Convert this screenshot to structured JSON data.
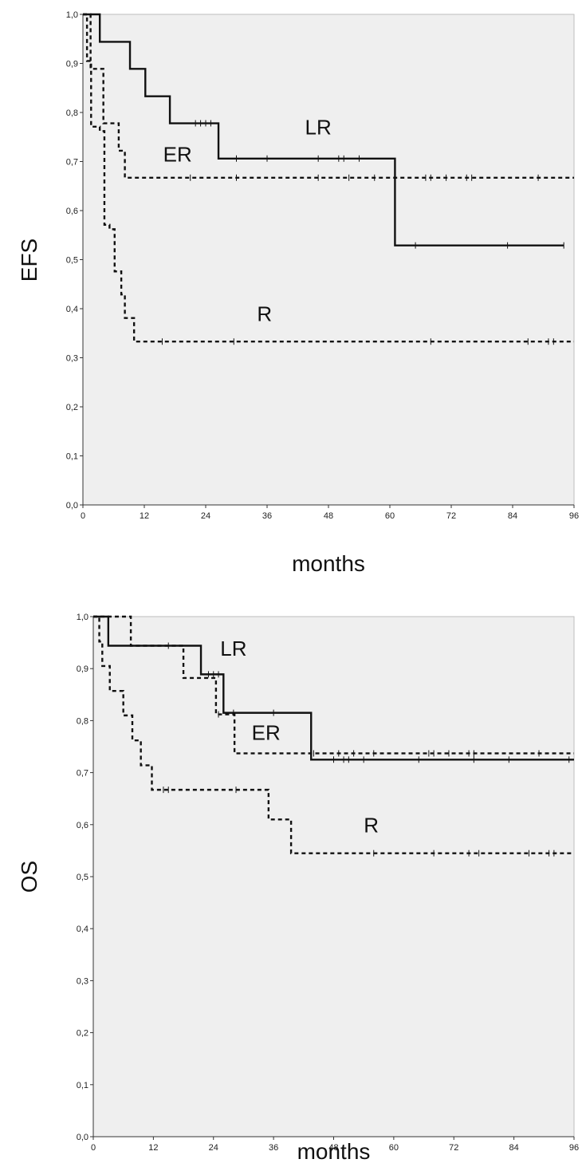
{
  "chart_data": [
    {
      "type": "line",
      "subtype": "kaplan-meier",
      "ylabel": "EFS",
      "xlabel": "months",
      "xlim": [
        0,
        96
      ],
      "ylim": [
        0.0,
        1.0
      ],
      "xticks": [
        "0",
        "12",
        "24",
        "36",
        "48",
        "60",
        "72",
        "84",
        "96"
      ],
      "yticks": [
        "0,0",
        "0,1",
        "0,2",
        "0,3",
        "0,4",
        "0,5",
        "0,6",
        "0,7",
        "0,8",
        "0,9",
        "1,0"
      ],
      "grid": false,
      "background": "#efefef",
      "series": [
        {
          "name": "LR",
          "style": "solid",
          "steps": [
            [
              0,
              1.0
            ],
            [
              3.3,
              0.944
            ],
            [
              9.2,
              0.889
            ],
            [
              12.2,
              0.833
            ],
            [
              17,
              0.778
            ],
            [
              26.5,
              0.706
            ],
            [
              61,
              0.529
            ],
            [
              94,
              0.529
            ]
          ],
          "censored": [
            [
              22,
              0.778
            ],
            [
              23,
              0.778
            ],
            [
              24,
              0.778
            ],
            [
              25,
              0.778
            ],
            [
              30,
              0.706
            ],
            [
              36,
              0.706
            ],
            [
              46,
              0.706
            ],
            [
              50,
              0.706
            ],
            [
              51,
              0.706
            ],
            [
              54,
              0.706
            ],
            [
              65,
              0.529
            ],
            [
              83,
              0.529
            ],
            [
              94,
              0.529
            ]
          ],
          "label_at": [
            46,
            0.755
          ]
        },
        {
          "name": "ER",
          "style": "dashed",
          "steps": [
            [
              0,
              1.0
            ],
            [
              1.5,
              0.889
            ],
            [
              4,
              0.778
            ],
            [
              7,
              0.722
            ],
            [
              8.2,
              0.667
            ],
            [
              96,
              0.667
            ]
          ],
          "censored": [
            [
              21,
              0.667
            ],
            [
              30,
              0.667
            ],
            [
              46,
              0.667
            ],
            [
              52,
              0.667
            ],
            [
              57,
              0.667
            ],
            [
              67,
              0.667
            ],
            [
              68,
              0.667
            ],
            [
              71,
              0.667
            ],
            [
              75,
              0.667
            ],
            [
              76,
              0.667
            ],
            [
              89,
              0.667
            ]
          ],
          "label_at": [
            18.5,
            0.7
          ]
        },
        {
          "name": "R",
          "style": "dashed",
          "steps": [
            [
              0,
              1.0
            ],
            [
              0.8,
              0.905
            ],
            [
              1.6,
              0.771
            ],
            [
              3.3,
              0.762
            ],
            [
              4.2,
              0.571
            ],
            [
              5.2,
              0.562
            ],
            [
              6.2,
              0.476
            ],
            [
              7.5,
              0.429
            ],
            [
              8.2,
              0.381
            ],
            [
              9,
              0.381
            ],
            [
              10,
              0.333
            ],
            [
              96,
              0.333
            ]
          ],
          "censored": [
            [
              15.5,
              0.333
            ],
            [
              29.5,
              0.333
            ],
            [
              68,
              0.333
            ],
            [
              87,
              0.333
            ],
            [
              91,
              0.333
            ],
            [
              92,
              0.333
            ]
          ],
          "label_at": [
            35.5,
            0.375
          ]
        }
      ]
    },
    {
      "type": "line",
      "subtype": "kaplan-meier",
      "ylabel": "OS",
      "xlabel": "months",
      "xlim": [
        0,
        96
      ],
      "ylim": [
        0.0,
        1.0
      ],
      "xticks": [
        "0",
        "12",
        "24",
        "36",
        "48",
        "60",
        "72",
        "84",
        "96"
      ],
      "yticks": [
        "0,0",
        "0,1",
        "0,2",
        "0,3",
        "0,4",
        "0,5",
        "0,6",
        "0,7",
        "0,8",
        "0,9",
        "1,0"
      ],
      "grid": false,
      "background": "#efefef",
      "series": [
        {
          "name": "LR",
          "style": "solid",
          "steps": [
            [
              0,
              1.0
            ],
            [
              3,
              0.944
            ],
            [
              21.5,
              0.889
            ],
            [
              26,
              0.815
            ],
            [
              43.5,
              0.725
            ],
            [
              96,
              0.725
            ]
          ],
          "censored": [
            [
              15,
              0.944
            ],
            [
              23,
              0.889
            ],
            [
              24,
              0.889
            ],
            [
              25,
              0.889
            ],
            [
              28,
              0.815
            ],
            [
              36,
              0.815
            ],
            [
              48,
              0.725
            ],
            [
              50,
              0.725
            ],
            [
              51,
              0.725
            ],
            [
              54,
              0.725
            ],
            [
              65,
              0.725
            ],
            [
              76,
              0.725
            ],
            [
              83,
              0.725
            ],
            [
              95,
              0.725
            ]
          ],
          "label_at": [
            28,
            0.925
          ]
        },
        {
          "name": "ER",
          "style": "dashed",
          "steps": [
            [
              0,
              1.0
            ],
            [
              7.5,
              0.944
            ],
            [
              18,
              0.882
            ],
            [
              24.5,
              0.812
            ],
            [
              28.2,
              0.737
            ],
            [
              96,
              0.737
            ]
          ],
          "censored": [
            [
              25,
              0.812
            ],
            [
              44,
              0.737
            ],
            [
              49,
              0.737
            ],
            [
              52,
              0.737
            ],
            [
              56,
              0.737
            ],
            [
              67,
              0.737
            ],
            [
              68,
              0.737
            ],
            [
              71,
              0.737
            ],
            [
              75,
              0.737
            ],
            [
              76,
              0.737
            ],
            [
              89,
              0.737
            ]
          ],
          "label_at": [
            34.5,
            0.763
          ]
        },
        {
          "name": "R",
          "style": "dashed",
          "steps": [
            [
              0,
              1.0
            ],
            [
              1.2,
              0.952
            ],
            [
              1.8,
              0.905
            ],
            [
              3.3,
              0.857
            ],
            [
              6,
              0.81
            ],
            [
              7.8,
              0.762
            ],
            [
              9.5,
              0.714
            ],
            [
              11.7,
              0.667
            ],
            [
              35,
              0.61
            ],
            [
              39.5,
              0.545
            ],
            [
              96,
              0.545
            ]
          ],
          "censored": [
            [
              14,
              0.667
            ],
            [
              15,
              0.667
            ],
            [
              28.5,
              0.667
            ],
            [
              56,
              0.545
            ],
            [
              68,
              0.545
            ],
            [
              75,
              0.545
            ],
            [
              77,
              0.545
            ],
            [
              87,
              0.545
            ],
            [
              91,
              0.545
            ],
            [
              92,
              0.545
            ]
          ],
          "label_at": [
            55.5,
            0.585
          ]
        }
      ]
    }
  ]
}
